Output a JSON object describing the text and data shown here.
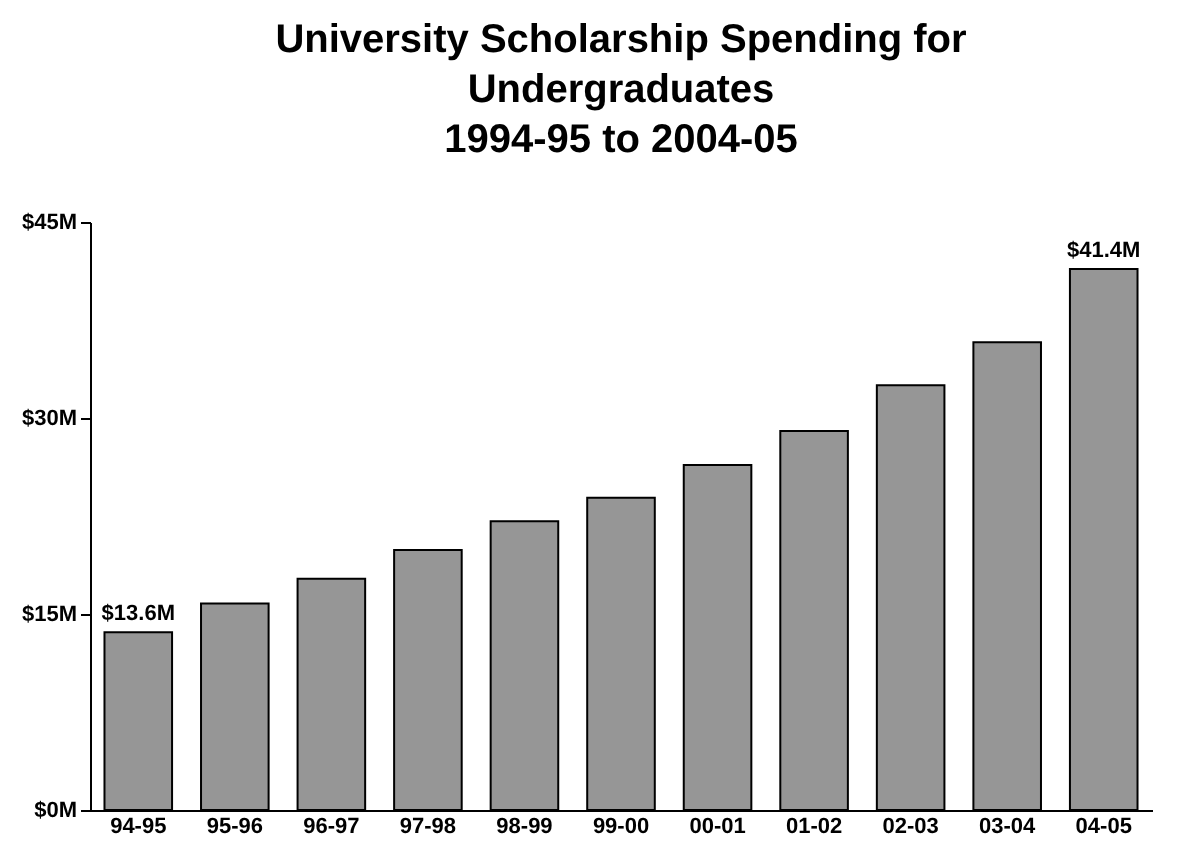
{
  "chart_data": {
    "type": "bar",
    "title": "University Scholarship Spending for\nUndergraduates\n1994-95 to 2004-05",
    "categories": [
      "94-95",
      "95-96",
      "96-97",
      "97-98",
      "98-99",
      "99-00",
      "00-01",
      "01-02",
      "02-03",
      "03-04",
      "04-05"
    ],
    "values": [
      13.6,
      15.8,
      17.7,
      19.9,
      22.1,
      23.9,
      26.4,
      29.0,
      32.5,
      35.8,
      41.4
    ],
    "value_labels": [
      "$13.6M",
      null,
      null,
      null,
      null,
      null,
      null,
      null,
      null,
      null,
      "$41.4M"
    ],
    "color": "#969696",
    "ylim": [
      0,
      45
    ],
    "yticks": [
      {
        "value": 0,
        "label": "$0M"
      },
      {
        "value": 15,
        "label": "$15M"
      },
      {
        "value": 30,
        "label": "$30M"
      },
      {
        "value": 45,
        "label": "$45M"
      }
    ],
    "grid": false
  }
}
